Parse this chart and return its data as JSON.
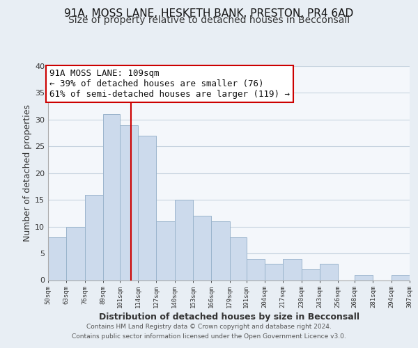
{
  "title": "91A, MOSS LANE, HESKETH BANK, PRESTON, PR4 6AD",
  "subtitle": "Size of property relative to detached houses in Becconsall",
  "xlabel": "Distribution of detached houses by size in Becconsall",
  "ylabel": "Number of detached properties",
  "bins": [
    50,
    63,
    76,
    89,
    101,
    114,
    127,
    140,
    153,
    166,
    179,
    191,
    204,
    217,
    230,
    243,
    256,
    268,
    281,
    294,
    307
  ],
  "bin_labels": [
    "50sqm",
    "63sqm",
    "76sqm",
    "89sqm",
    "101sqm",
    "114sqm",
    "127sqm",
    "140sqm",
    "153sqm",
    "166sqm",
    "179sqm",
    "191sqm",
    "204sqm",
    "217sqm",
    "230sqm",
    "243sqm",
    "256sqm",
    "268sqm",
    "281sqm",
    "294sqm",
    "307sqm"
  ],
  "values": [
    8,
    10,
    16,
    31,
    29,
    27,
    11,
    15,
    12,
    11,
    8,
    4,
    3,
    4,
    2,
    3,
    0,
    1,
    0,
    1
  ],
  "bar_color": "#ccdaec",
  "bar_edge_color": "#9ab4cc",
  "reference_line_x": 109,
  "reference_line_color": "#cc0000",
  "annotation_text_line1": "91A MOSS LANE: 109sqm",
  "annotation_text_line2": "← 39% of detached houses are smaller (76)",
  "annotation_text_line3": "61% of semi-detached houses are larger (119) →",
  "ylim": [
    0,
    40
  ],
  "yticks": [
    0,
    5,
    10,
    15,
    20,
    25,
    30,
    35,
    40
  ],
  "background_color": "#e8eef4",
  "plot_background_color": "#f4f7fb",
  "grid_color": "#c8d4e0",
  "footer_text": "Contains HM Land Registry data © Crown copyright and database right 2024.\nContains public sector information licensed under the Open Government Licence v3.0.",
  "title_fontsize": 11,
  "subtitle_fontsize": 10,
  "xlabel_fontsize": 9,
  "ylabel_fontsize": 9,
  "annotation_fontsize": 9
}
